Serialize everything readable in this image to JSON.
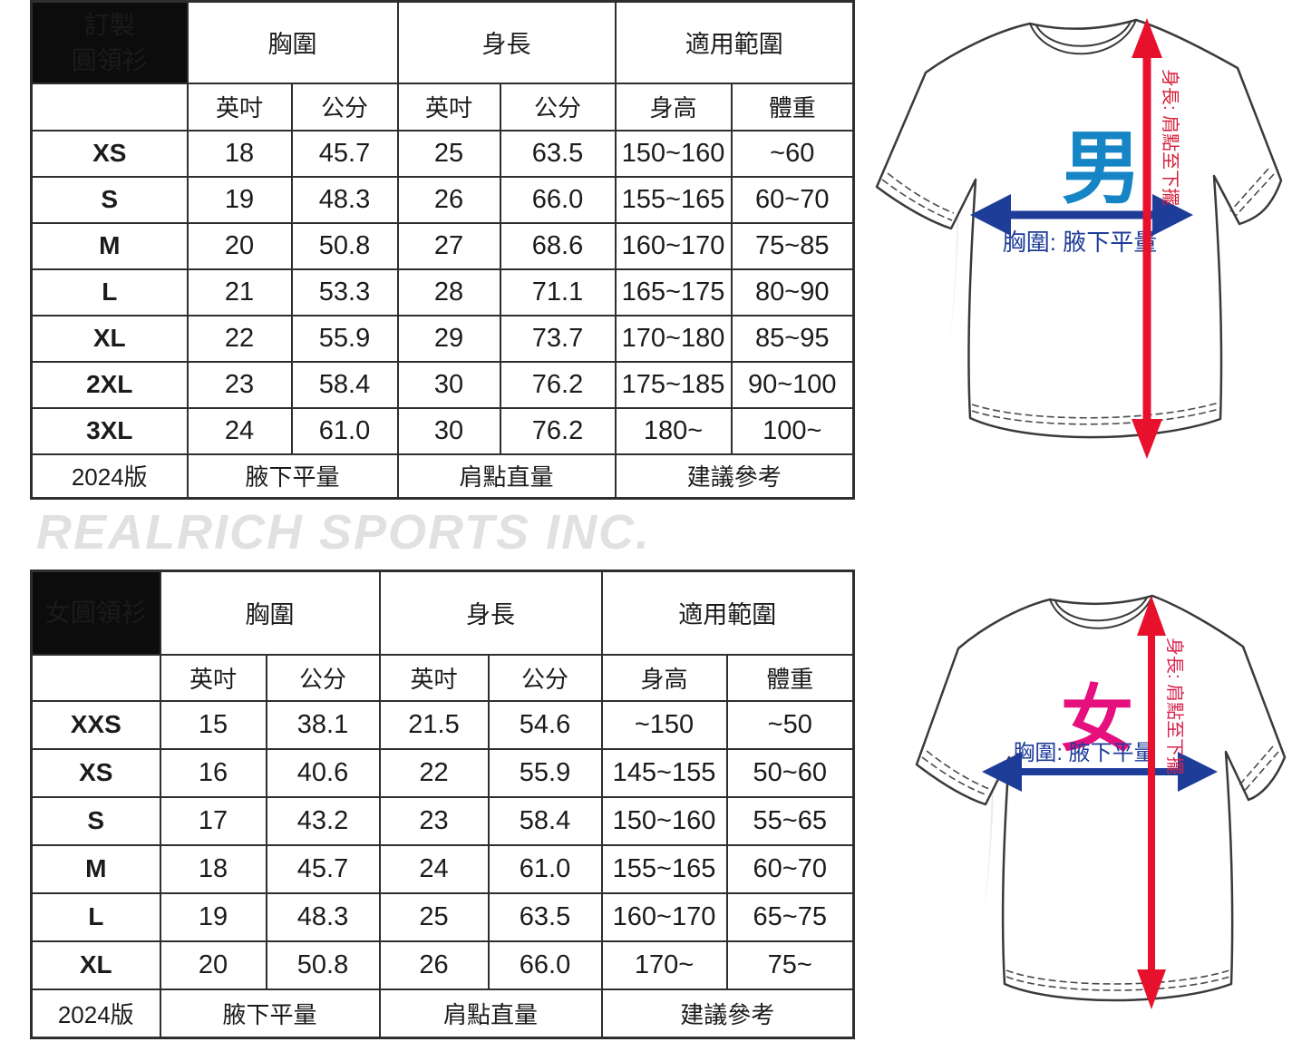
{
  "watermark": "REALRICH SPORTS INC.",
  "tables": [
    {
      "title_lines": [
        "訂製",
        "圓領衫"
      ],
      "group_headers": [
        "胸圍",
        "身長",
        "適用範圍"
      ],
      "sub_headers": [
        "英吋",
        "公分",
        "英吋",
        "公分",
        "身高",
        "體重"
      ],
      "rows": [
        [
          "XS",
          "18",
          "45.7",
          "25",
          "63.5",
          "150~160",
          "~60"
        ],
        [
          "S",
          "19",
          "48.3",
          "26",
          "66.0",
          "155~165",
          "60~70"
        ],
        [
          "M",
          "20",
          "50.8",
          "27",
          "68.6",
          "160~170",
          "75~85"
        ],
        [
          "L",
          "21",
          "53.3",
          "28",
          "71.1",
          "165~175",
          "80~90"
        ],
        [
          "XL",
          "22",
          "55.9",
          "29",
          "73.7",
          "170~180",
          "85~95"
        ],
        [
          "2XL",
          "23",
          "58.4",
          "30",
          "76.2",
          "175~185",
          "90~100"
        ],
        [
          "3XL",
          "24",
          "61.0",
          "30",
          "76.2",
          "180~",
          "100~"
        ]
      ],
      "footer": [
        "2024版",
        "腋下平量",
        "肩點直量",
        "建議參考"
      ]
    },
    {
      "title_lines": [
        "女圓領衫"
      ],
      "group_headers": [
        "胸圍",
        "身長",
        "適用範圍"
      ],
      "sub_headers": [
        "英吋",
        "公分",
        "英吋",
        "公分",
        "身高",
        "體重"
      ],
      "rows": [
        [
          "XXS",
          "15",
          "38.1",
          "21.5",
          "54.6",
          "~150",
          "~50"
        ],
        [
          "XS",
          "16",
          "40.6",
          "22",
          "55.9",
          "145~155",
          "50~60"
        ],
        [
          "S",
          "17",
          "43.2",
          "23",
          "58.4",
          "150~160",
          "55~65"
        ],
        [
          "M",
          "18",
          "45.7",
          "24",
          "61.0",
          "155~165",
          "60~70"
        ],
        [
          "L",
          "19",
          "48.3",
          "25",
          "63.5",
          "160~170",
          "65~75"
        ],
        [
          "XL",
          "20",
          "50.8",
          "26",
          "66.0",
          "170~",
          "75~"
        ]
      ],
      "footer": [
        "2024版",
        "腋下平量",
        "肩點直量",
        "建議參考"
      ]
    }
  ],
  "diagrams": {
    "men": {
      "gender_label": "男",
      "gender_color": "#1585c5",
      "length_label": "身長: 肩點至下擺",
      "length_label_color": "#d41f38",
      "length_arrow_color": "#e8112d",
      "chest_label": "胸圍: 腋下平量",
      "chest_label_color": "#1e3d99",
      "chest_arrow_color": "#1e3d99"
    },
    "women": {
      "gender_label": "女",
      "gender_color": "#e5107e",
      "length_label": "身長: 肩點至下擺",
      "length_label_color": "#d6234d",
      "length_arrow_color": "#e8112d",
      "chest_label": "胸圍: 腋下平量",
      "chest_label_color": "#1e3d99",
      "chest_arrow_color": "#1e3d99"
    }
  }
}
